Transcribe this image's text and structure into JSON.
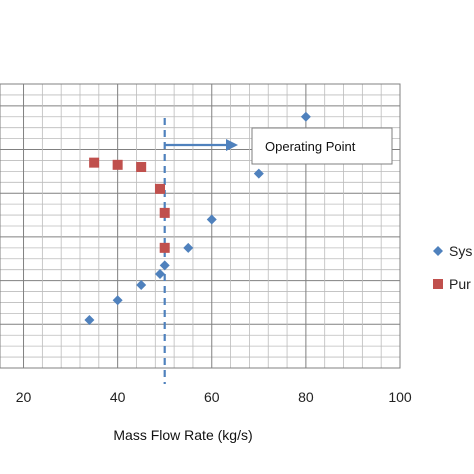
{
  "chart_data": {
    "type": "scatter",
    "title": "",
    "xlabel": "Mass Flow Rate (kg/s)",
    "ylabel": "",
    "xlim": [
      15,
      100
    ],
    "ylim": [
      0,
      130
    ],
    "x_ticks": [
      20,
      40,
      60,
      80,
      100
    ],
    "grid": true,
    "legend_position": "right",
    "series": [
      {
        "name": "Sys",
        "marker": "diamond",
        "color": "#4f81bd",
        "points": [
          {
            "x": 34,
            "y": 22
          },
          {
            "x": 40,
            "y": 31
          },
          {
            "x": 45,
            "y": 38
          },
          {
            "x": 49,
            "y": 43
          },
          {
            "x": 50,
            "y": 47
          },
          {
            "x": 55,
            "y": 55
          },
          {
            "x": 60,
            "y": 68
          },
          {
            "x": 70,
            "y": 89
          },
          {
            "x": 80,
            "y": 115
          }
        ]
      },
      {
        "name": "Pur",
        "marker": "square",
        "color": "#c0504d",
        "points": [
          {
            "x": 35,
            "y": 94
          },
          {
            "x": 40,
            "y": 93
          },
          {
            "x": 45,
            "y": 92
          },
          {
            "x": 49,
            "y": 82
          },
          {
            "x": 50,
            "y": 71
          },
          {
            "x": 50,
            "y": 55
          }
        ]
      }
    ],
    "reference_line": {
      "x": 50,
      "style": "dashed",
      "color": "#4f81bd"
    },
    "annotation": {
      "text": "Operating Point",
      "arrow": true
    }
  }
}
